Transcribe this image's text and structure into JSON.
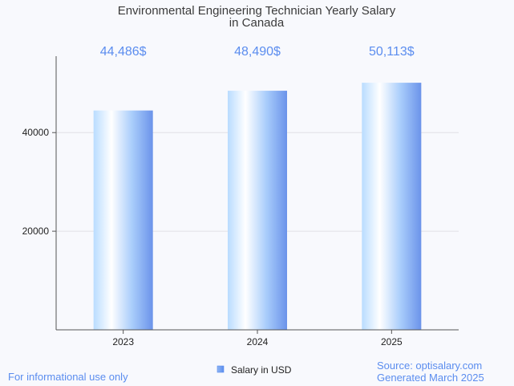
{
  "colors": {
    "background": "#f8f9fd",
    "accent": "#5b8def",
    "bar_light": "#ffffff",
    "bar_mid": "#b9dcff",
    "bar_dark": "#6b93ea",
    "grid": "#e0e0e6",
    "axis": "#555555"
  },
  "legend": {
    "label": "Salary in USD"
  },
  "footer": {
    "left": "For informational use only",
    "source": "Source: optisalary.com",
    "generated": "Generated March 2025"
  },
  "chart_data": {
    "type": "bar",
    "title": "Environmental Engineering Technician Yearly Salary in Canada",
    "title_lines": [
      "Environmental Engineering Technician Yearly Salary",
      "in Canada"
    ],
    "categories": [
      "2023",
      "2024",
      "2025"
    ],
    "values": [
      44486,
      48490,
      50113
    ],
    "value_labels": [
      "44,486$",
      "48,490$",
      "50,113$"
    ],
    "series": [
      {
        "name": "Salary in USD",
        "values": [
          44486,
          48490,
          50113
        ]
      }
    ],
    "yticks": [
      20000,
      40000
    ],
    "ytick_labels": [
      "20000",
      "40000"
    ],
    "ylim": [
      0,
      55500
    ],
    "xlabel": "",
    "ylabel": "",
    "grid": true,
    "legend_position": "bottom-center"
  }
}
